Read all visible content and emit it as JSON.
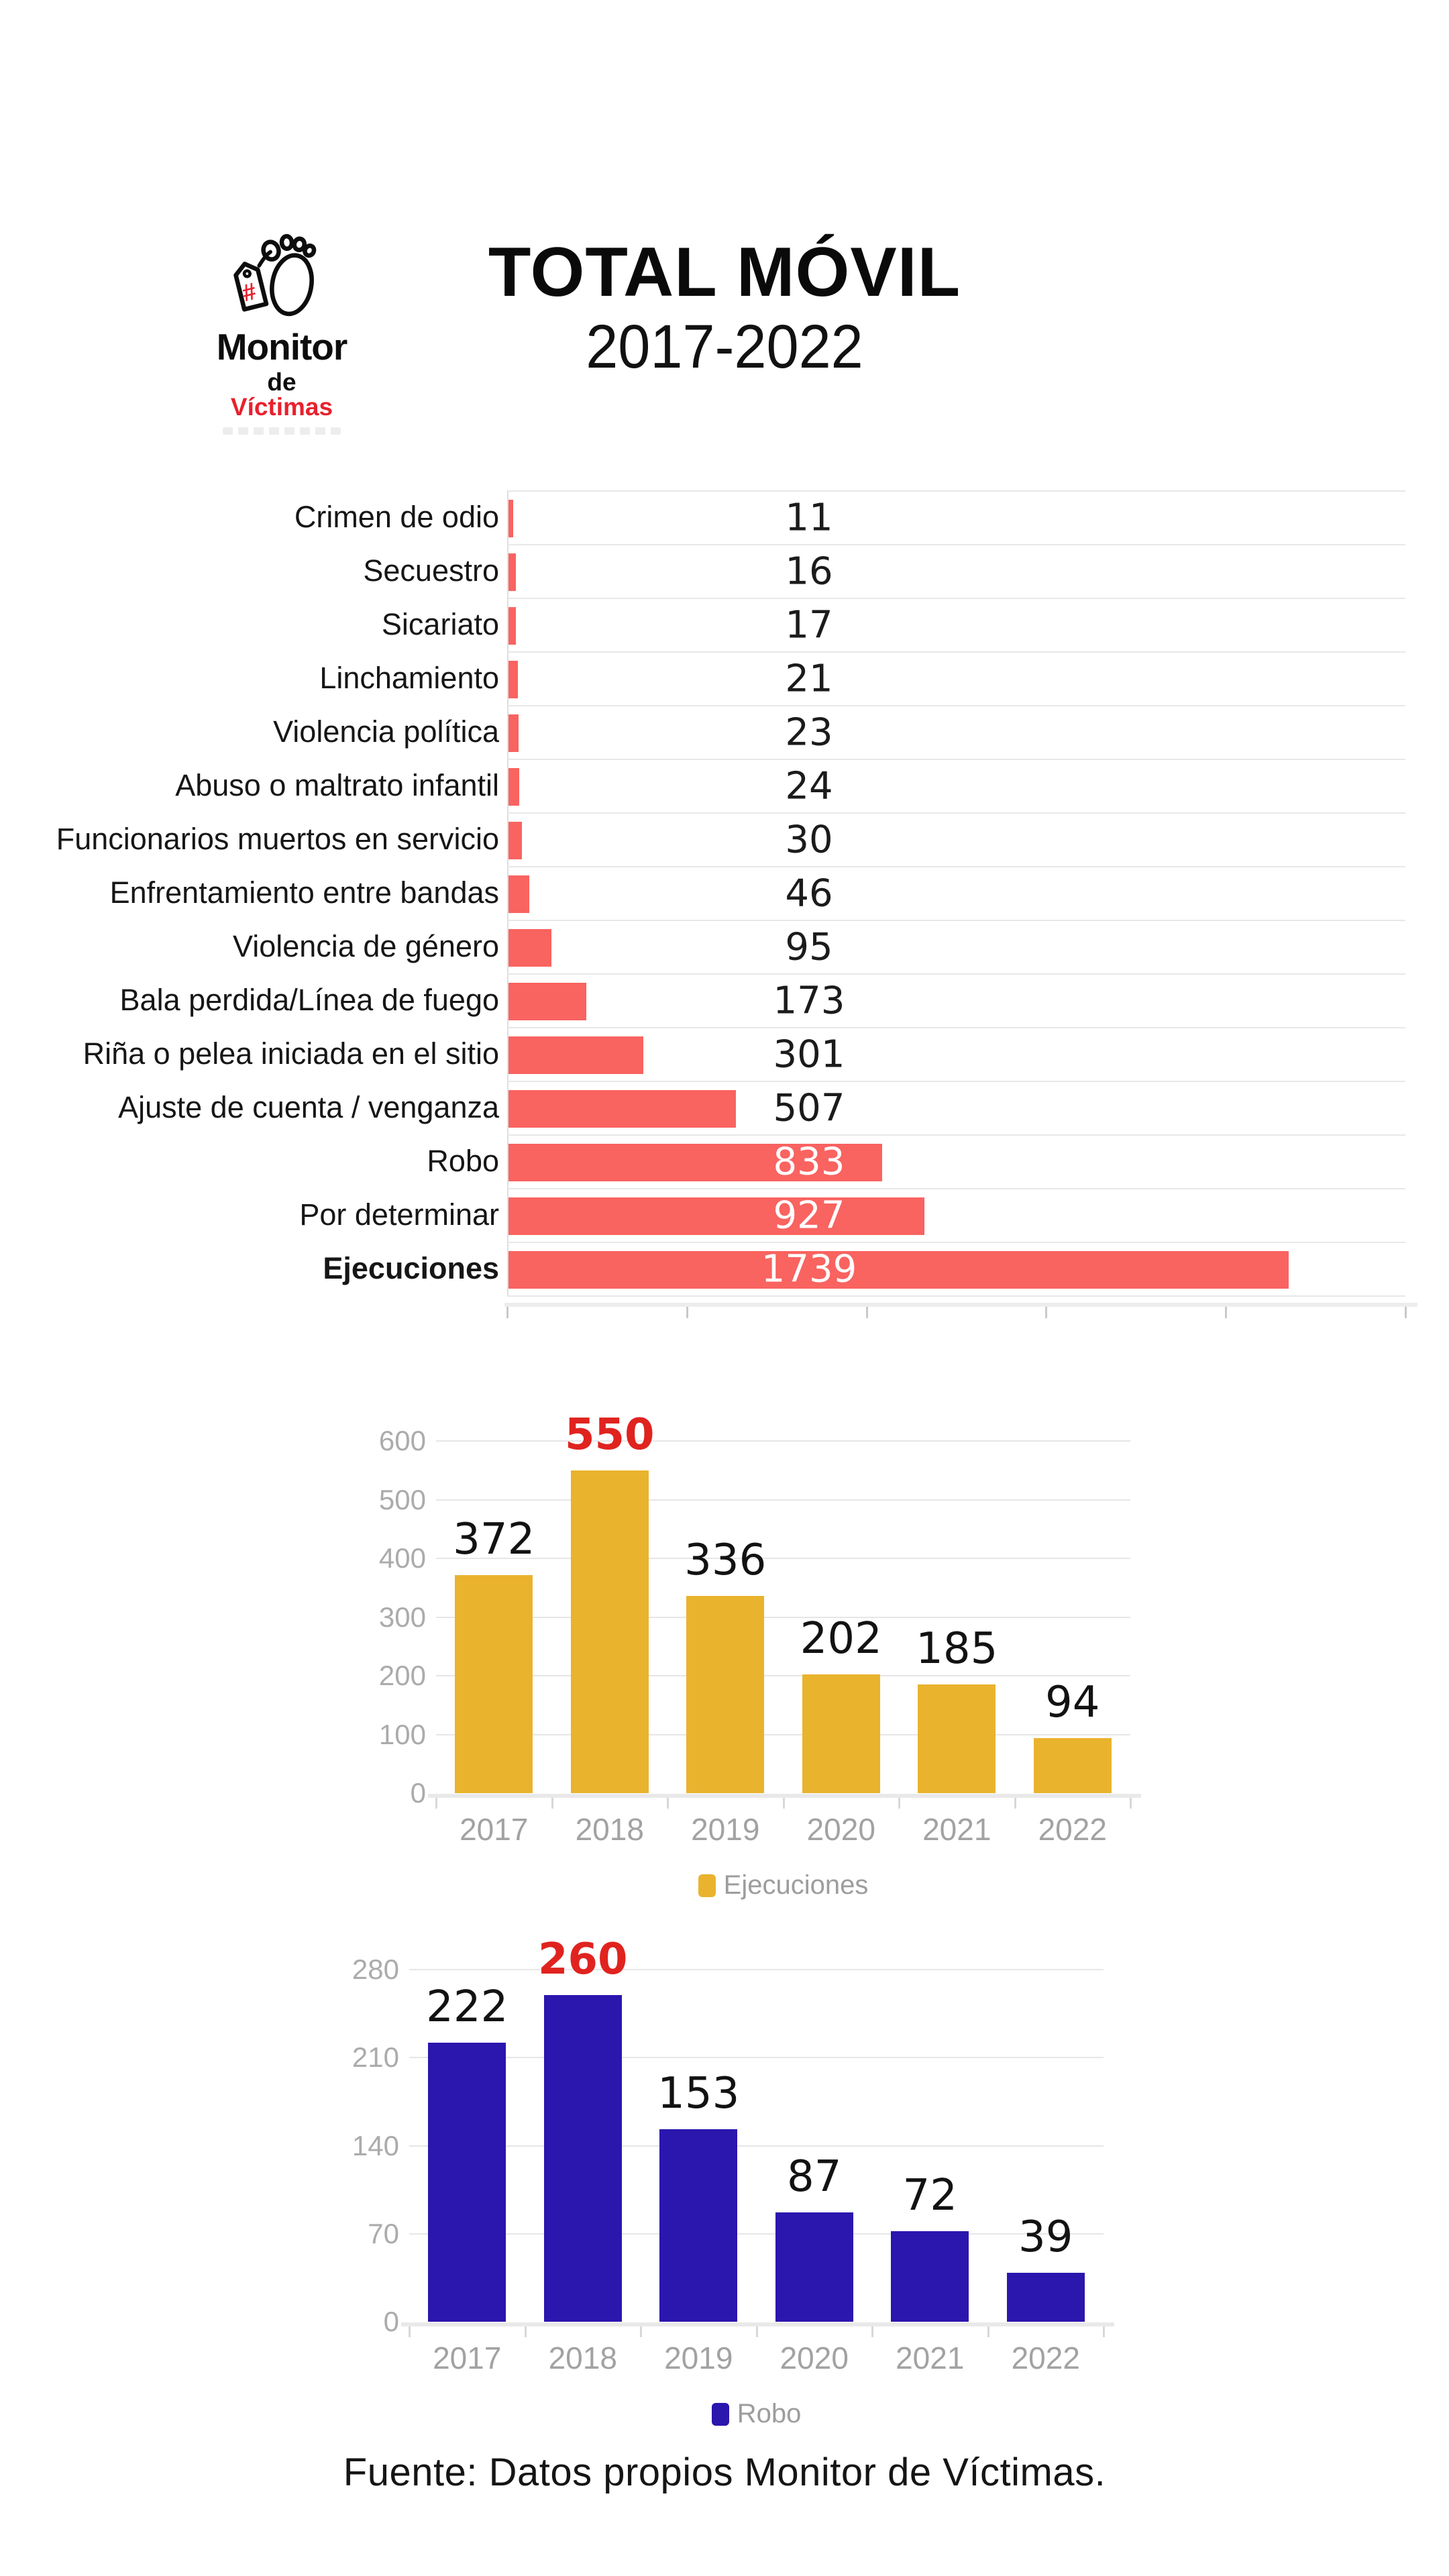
{
  "header": {
    "title": "TOTAL MÓVIL",
    "subtitle": "2017-2022"
  },
  "logo": {
    "name_line1": "Monitor",
    "name_line2_prefix": "de",
    "name_line2_accent": "Víctimas",
    "tag_symbol": "#"
  },
  "colors": {
    "coral": "#f96360",
    "amber": "#e9b32e",
    "indigo": "#2b16ae",
    "highlight_red": "#e0231f",
    "logo_red": "#e8212d",
    "axis_gray": "#a5a5a5",
    "grid_gray": "#e6e6e6"
  },
  "chart_data": [
    {
      "type": "bar",
      "orientation": "horizontal",
      "categories": [
        "Crimen de odio",
        "Secuestro",
        "Sicariato",
        "Linchamiento",
        "Violencia política",
        "Abuso o maltrato infantil",
        "Funcionarios muertos en servicio",
        "Enfrentamiento entre bandas",
        "Violencia de género",
        "Bala perdida/Línea de fuego",
        "Riña o pelea iniciada en el sitio",
        "Ajuste de cuenta / venganza",
        "Robo",
        "Por determinar",
        "Ejecuciones"
      ],
      "values": [
        11,
        16,
        17,
        21,
        23,
        24,
        30,
        46,
        95,
        173,
        301,
        507,
        833,
        927,
        1739
      ],
      "bar_color": "#f96360",
      "xlim": [
        0,
        2000
      ],
      "xtick_step": 400,
      "grid": true,
      "emphasis_category": "Ejecuciones"
    },
    {
      "type": "bar",
      "categories": [
        "2017",
        "2018",
        "2019",
        "2020",
        "2021",
        "2022"
      ],
      "series": [
        {
          "name": "Ejecuciones",
          "values": [
            372,
            550,
            336,
            202,
            185,
            94
          ]
        }
      ],
      "ylim": [
        0,
        600
      ],
      "ytick_step": 100,
      "grid": true,
      "bar_color": "#e9b32e",
      "legend": "Ejecuciones",
      "legend_position": "bottom",
      "highlight": {
        "category": "2018",
        "value": 550,
        "color": "#e0231f"
      }
    },
    {
      "type": "bar",
      "categories": [
        "2017",
        "2018",
        "2019",
        "2020",
        "2021",
        "2022"
      ],
      "series": [
        {
          "name": "Robo",
          "values": [
            222,
            260,
            153,
            87,
            72,
            39
          ]
        }
      ],
      "ylim": [
        0,
        280
      ],
      "ytick_step": 70,
      "grid": true,
      "bar_color": "#2b16ae",
      "legend": "Robo",
      "legend_position": "bottom",
      "highlight": {
        "category": "2018",
        "value": 260,
        "color": "#e0231f"
      }
    }
  ],
  "footer": {
    "source": "Fuente: Datos propios Monitor de Víctimas."
  }
}
